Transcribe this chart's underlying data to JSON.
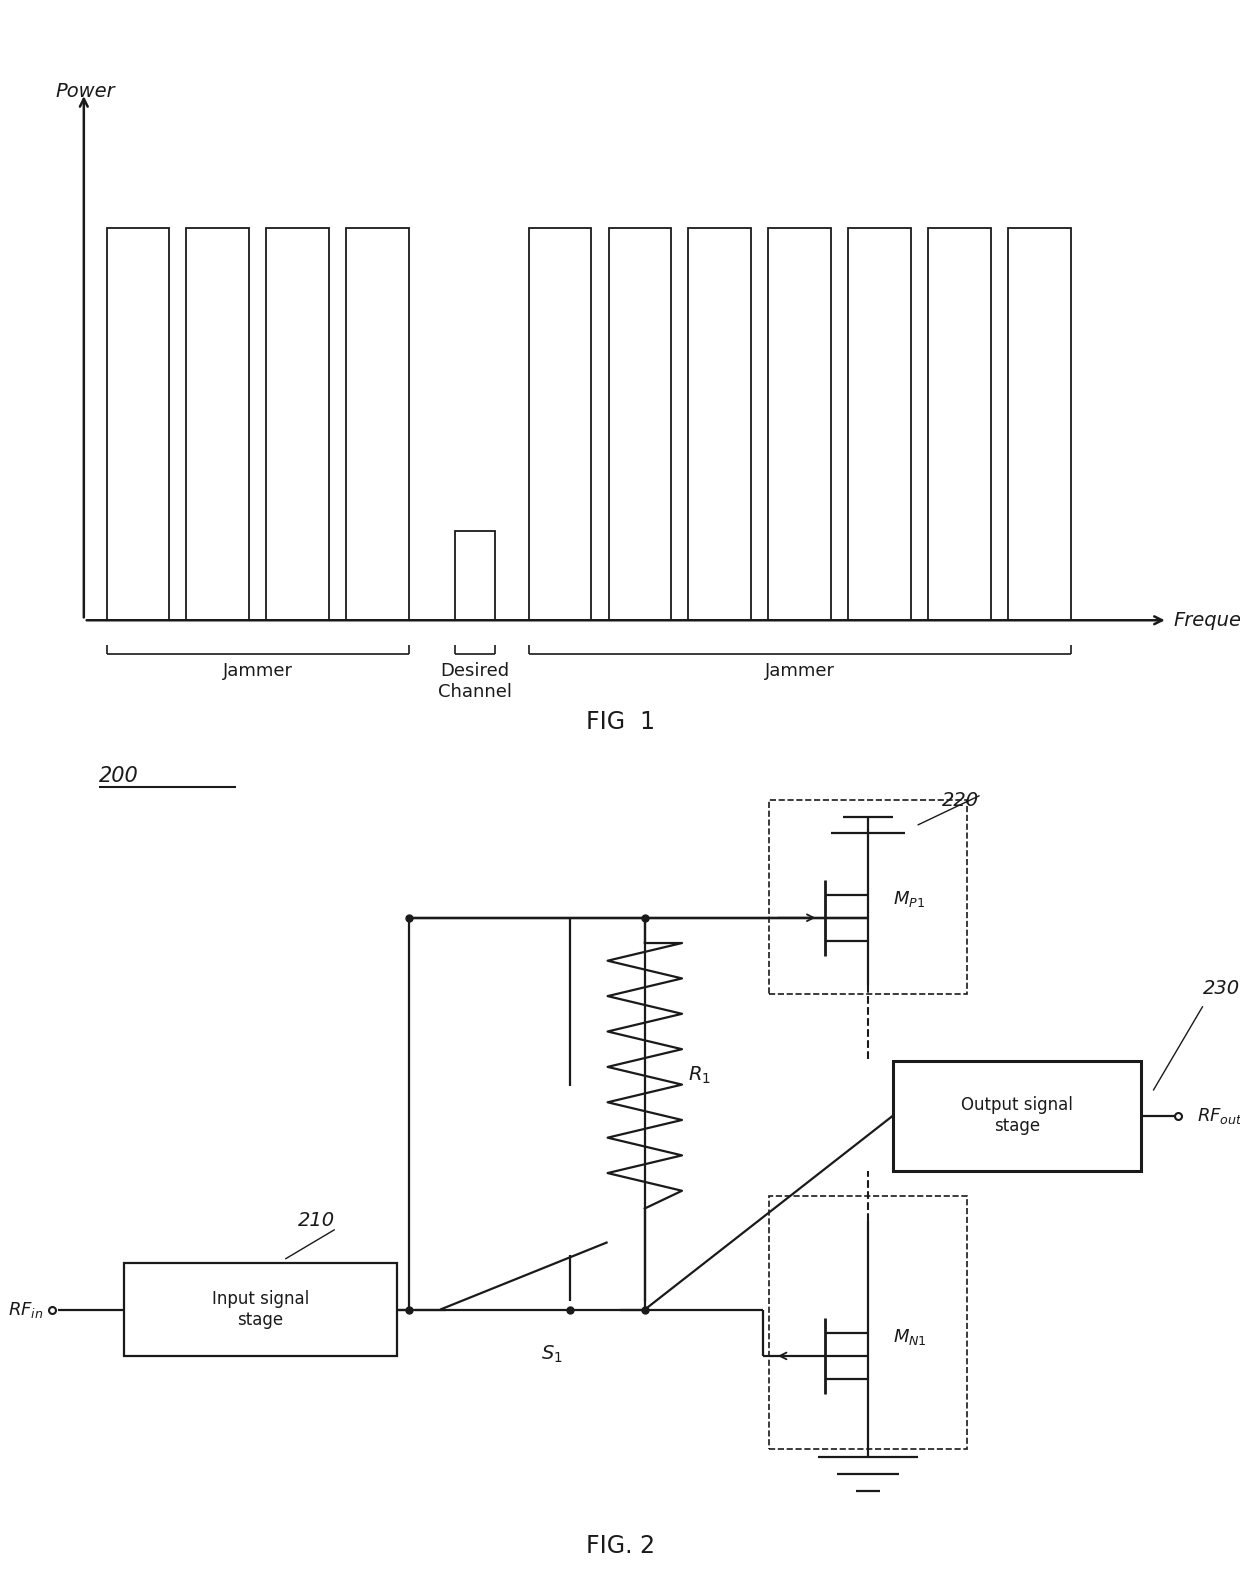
{
  "bg_color": "#ffffff",
  "line_color": "#1a1a1a",
  "fig1_caption": "FIG  1",
  "fig2_caption": "FIG. 2",
  "label_200": "200",
  "label_210": "210",
  "label_220": "220",
  "label_230": "230",
  "power_label": "Power",
  "freq_label": "Frequency",
  "jammer_label": "Jammer",
  "desired_label": "Desired\nChannel",
  "input_stage_label": "Input signal\nstage",
  "output_stage_label": "Output signal\nstage",
  "rf_in_label": "$RF_{in}$",
  "rf_out_label": "$RF_{out}$",
  "r1_label": "$R_1$",
  "s1_label": "$S_1$",
  "mp1_label": "$M_{P1}$",
  "mn1_label": "$M_{N1}$"
}
